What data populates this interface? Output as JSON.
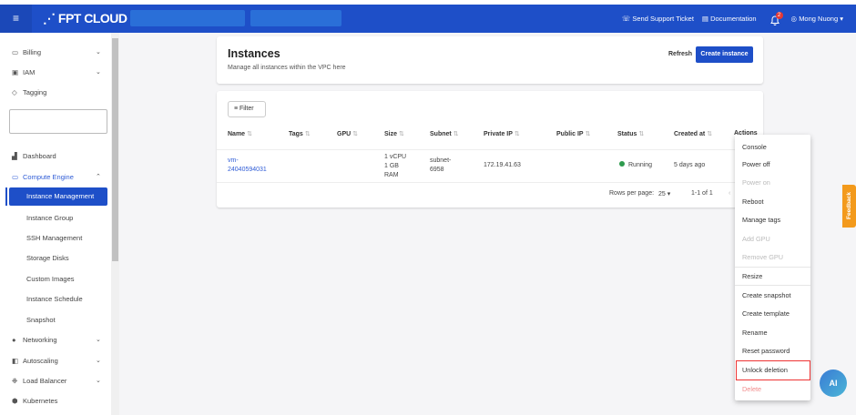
{
  "topbar": {
    "logo": "FPT CLOUD",
    "support": "Send Support Ticket",
    "docs": "Documentation",
    "notifications": "2",
    "user": "Mong Nuong"
  },
  "sidebar": {
    "items": [
      {
        "label": "Billing"
      },
      {
        "label": "IAM"
      },
      {
        "label": "Tagging"
      },
      {
        "label": "Dashboard"
      },
      {
        "label": "Compute Engine"
      },
      {
        "label": "Networking"
      },
      {
        "label": "Autoscaling"
      },
      {
        "label": "Load Balancer"
      },
      {
        "label": "Kubernetes"
      }
    ],
    "sub": [
      "Instance Management",
      "Instance Group",
      "SSH Management",
      "Storage Disks",
      "Custom Images",
      "Instance Schedule",
      "Snapshot"
    ]
  },
  "header": {
    "title": "Instances",
    "subtitle": "Manage all instances within the VPC here",
    "refresh": "Refresh",
    "create": "Create instance"
  },
  "table": {
    "filter": "Filter",
    "columns": [
      "Name",
      "Tags",
      "GPU",
      "Size",
      "Subnet",
      "Private IP",
      "Public IP",
      "Status",
      "Created at",
      "Actions"
    ],
    "rows": [
      {
        "name_1": "vm-",
        "name_2": "24040594031",
        "size_1": "1 vCPU",
        "size_2": "1 GB",
        "size_3": "RAM",
        "subnet_1": "subnet-",
        "subnet_2": "6958",
        "private_ip": "172.19.41.63",
        "status": "Running",
        "created": "5 days ago"
      }
    ],
    "rows_per_page_label": "Rows per page:",
    "rows_per_page": "25",
    "range": "1-1 of 1"
  },
  "actions_menu": [
    "Console",
    "Power off",
    "Power on",
    "Reboot",
    "Manage tags",
    "Add GPU",
    "Remove GPU",
    "Resize",
    "Create snapshot",
    "Create template",
    "Rename",
    "Reset password",
    "Unlock deletion",
    "Delete"
  ],
  "feedback": "Feedback",
  "ai_button": "AI",
  "colors": {
    "primary": "#1e4fc8",
    "running": "#2e9b4e",
    "feedback": "#f39a1c",
    "highlight": "#e33333"
  }
}
